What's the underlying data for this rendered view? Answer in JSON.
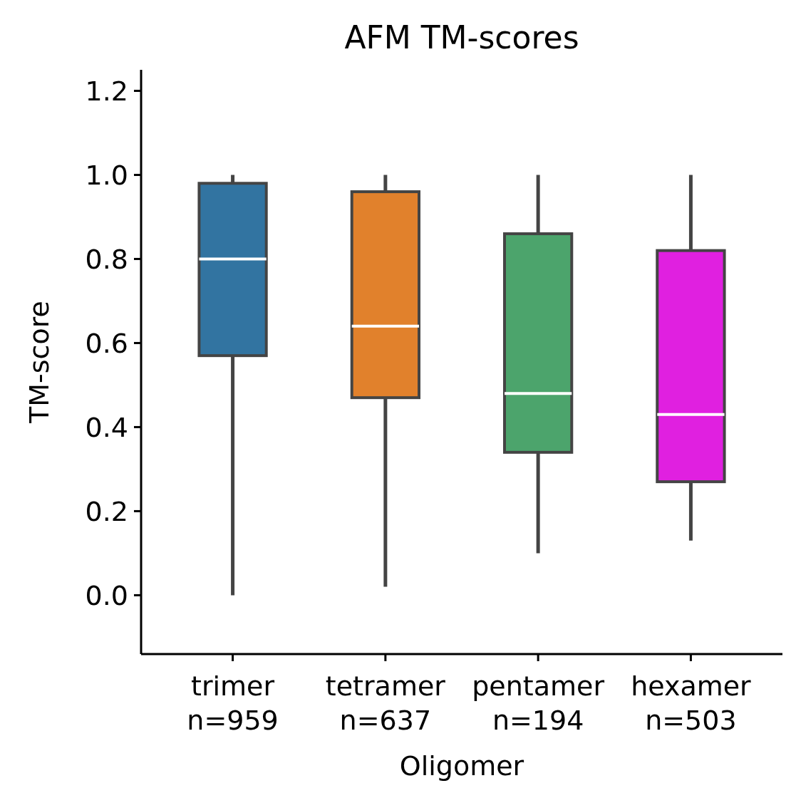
{
  "chart_data": {
    "type": "box",
    "title": "AFM TM-scores",
    "xlabel": "Oligomer",
    "ylabel": "TM-score",
    "categories": [
      "trimer\nn=959",
      "tetramer\nn=637",
      "pentamer\nn=194",
      "hexamer\nn=503"
    ],
    "colors": [
      "#3274a1",
      "#e1812c",
      "#4ca46c",
      "#e020e0"
    ],
    "boxes": [
      {
        "low": 0.0,
        "q1": 0.57,
        "median": 0.8,
        "q3": 0.98,
        "high": 1.0
      },
      {
        "low": 0.02,
        "q1": 0.47,
        "median": 0.64,
        "q3": 0.96,
        "high": 1.0
      },
      {
        "low": 0.1,
        "q1": 0.34,
        "median": 0.48,
        "q3": 0.86,
        "high": 1.0
      },
      {
        "low": 0.13,
        "q1": 0.27,
        "median": 0.43,
        "q3": 0.82,
        "high": 1.0
      }
    ],
    "ylim": [
      -0.14,
      1.25
    ],
    "yticks": [
      {
        "value": 0,
        "label": "0.0"
      },
      0.2,
      0.4,
      0.6,
      0.8,
      {
        "value": 1,
        "label": "1.0"
      },
      1.2
    ],
    "grid": false
  }
}
